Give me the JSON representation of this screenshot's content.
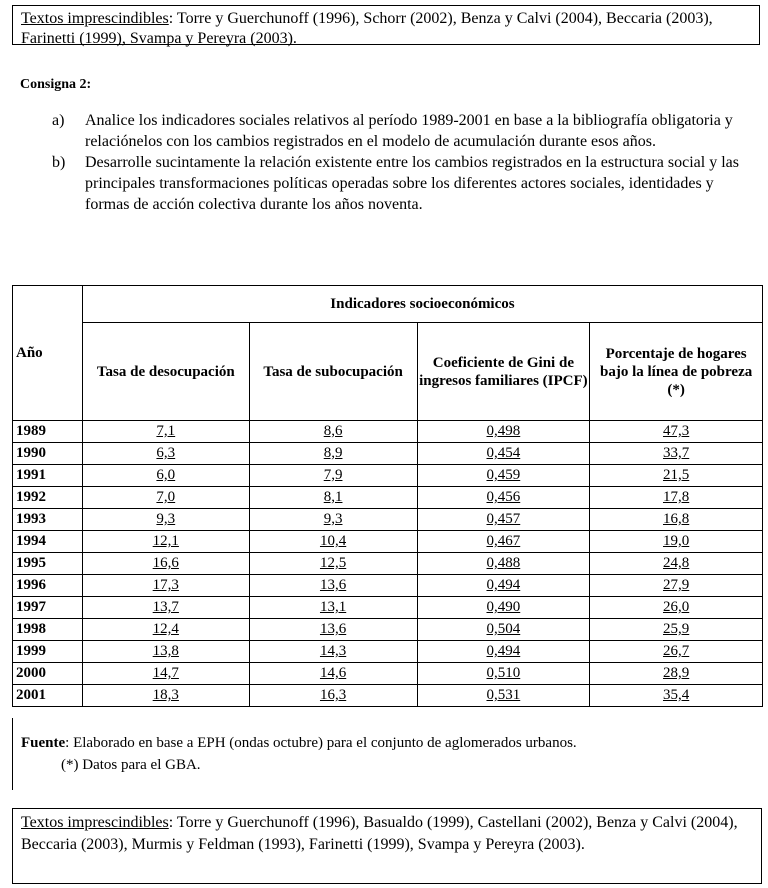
{
  "top_box": {
    "label": "Textos imprescindibles",
    "text": ": Torre y Guerchunoff (1996), Schorr (2002), Benza y Calvi (2004), Beccaria (2003), Farinetti (1999), Svampa y Pereyra (2003)."
  },
  "consigna": {
    "title": "Consigna 2:",
    "items": [
      {
        "marker": "a)",
        "text": "Analice los indicadores sociales relativos al período 1989-2001 en base a la bibliografía obligatoria y relaciónelos con los cambios registrados en el modelo de acumulación durante esos años."
      },
      {
        "marker": "b)",
        "text": "Desarrolle sucintamente  la relación existente entre los cambios registrados en la estructura social y las  principales transformaciones políticas operadas sobre los diferentes actores sociales, identidades y formas de acción colectiva durante los años noventa."
      }
    ]
  },
  "table": {
    "group_header": "Indicadores socioeconómicos",
    "headers": [
      "Año",
      "Tasa de desocupación",
      "Tasa de subocupación",
      "Coeficiente de Gini de ingresos familiares (IPCF)",
      "Porcentaje de hogares bajo la línea de pobreza (*)"
    ],
    "rows": [
      [
        "1989",
        "7,1",
        "8,6",
        "0,498",
        "47,3"
      ],
      [
        "1990",
        "6,3",
        "8,9",
        "0,454",
        "33,7"
      ],
      [
        "1991",
        "6,0",
        "7,9",
        "0,459",
        "21,5"
      ],
      [
        "1992",
        "7,0",
        "8,1",
        "0,456",
        "17,8"
      ],
      [
        "1993",
        "9,3",
        "9,3",
        "0,457",
        "16,8"
      ],
      [
        "1994",
        "12,1",
        "10,4",
        "0,467",
        "19,0"
      ],
      [
        "1995",
        "16,6",
        "12,5",
        "0,488",
        "24,8"
      ],
      [
        "1996",
        "17,3",
        "13,6",
        "0,494",
        "27,9"
      ],
      [
        "1997",
        "13,7",
        "13,1",
        "0,490",
        "26,0"
      ],
      [
        "1998",
        "12,4",
        "13,6",
        "0,504",
        "25,9"
      ],
      [
        "1999",
        "13,8",
        "14,3",
        "0,494",
        "26,7"
      ],
      [
        "2000",
        "14,7",
        "14,6",
        "0,510",
        "28,9"
      ],
      [
        "2001",
        "18,3",
        "16,3",
        "0,531",
        "35,4"
      ]
    ]
  },
  "source": {
    "label": "Fuente",
    "text": ": Elaborado en base a EPH (ondas octubre) para el conjunto de aglomerados urbanos.",
    "note": "(*) Datos para el GBA."
  },
  "bottom_box": {
    "label": "Textos imprescindibles",
    "text": ": Torre y Guerchunoff (1996), Basualdo (1999), Castellani (2002), Benza y Calvi (2004), Beccaria (2003), Murmis y Feldman (1993), Farinetti (1999), Svampa y Pereyra (2003)."
  }
}
